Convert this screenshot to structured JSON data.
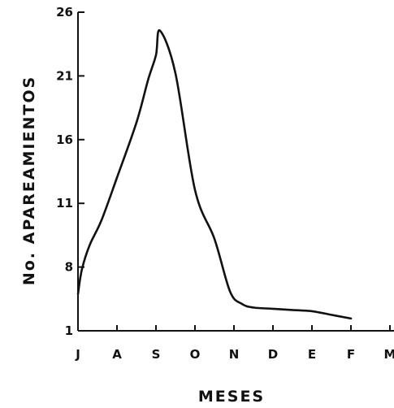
{
  "chart_data": {
    "type": "line",
    "title": "",
    "xlabel": "MESES",
    "ylabel": "No. APAREAMIENTOS",
    "x_ticks": [
      "J",
      "A",
      "S",
      "O",
      "N",
      "D",
      "E",
      "F",
      "M"
    ],
    "y_ticks": [
      "1",
      "8",
      "11",
      "16",
      "21",
      "26"
    ],
    "series": [
      {
        "x": [
          0,
          0.1,
          0.3,
          0.6,
          1.0,
          1.5,
          1.8,
          2.0,
          2.1,
          2.5,
          3.0,
          3.5,
          3.9,
          4.2,
          4.5,
          5.0,
          5.5,
          6.0,
          6.5,
          7.0
        ],
        "y": [
          3,
          5,
          7,
          9,
          12.5,
          17,
          20.5,
          22.5,
          24.5,
          21,
          11.5,
          7.5,
          3.2,
          2.2,
          1.9,
          1.8,
          1.7,
          1.6,
          1.3,
          1.0
        ]
      }
    ],
    "grid": false,
    "color": "#111111"
  }
}
